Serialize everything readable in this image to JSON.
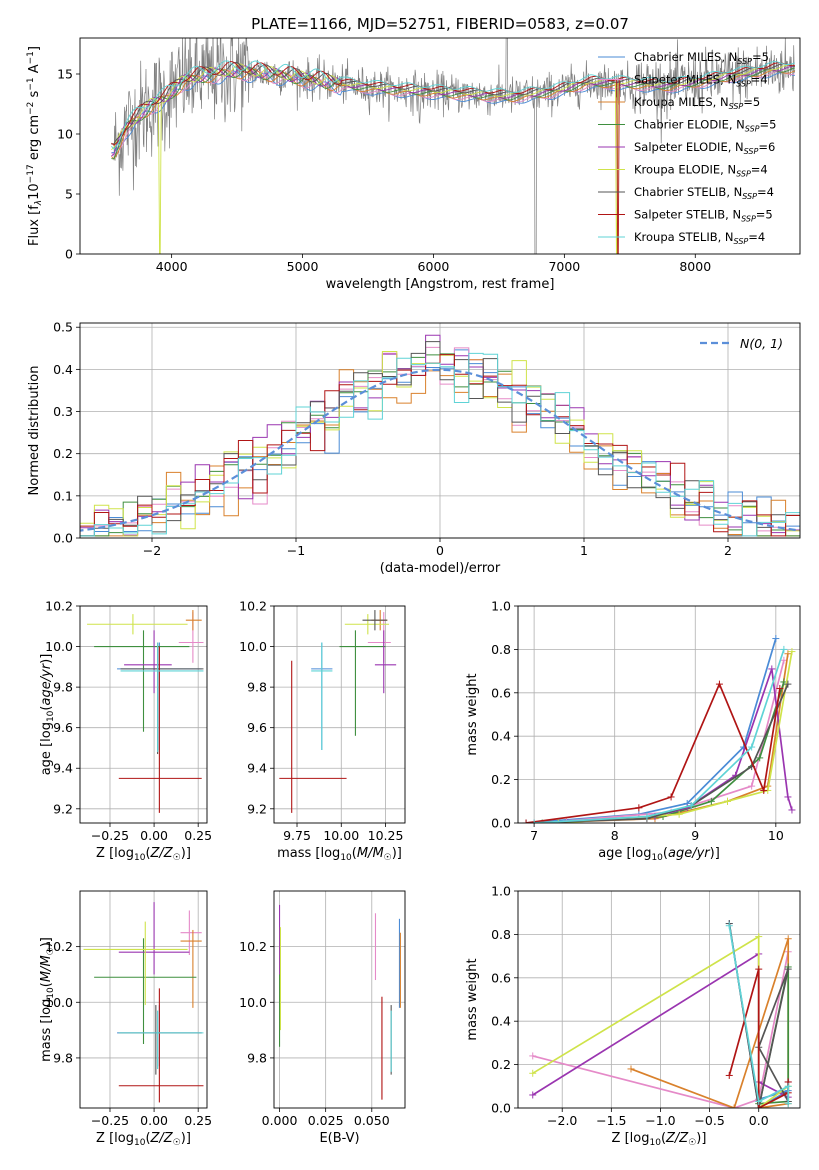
{
  "figure": {
    "title": "PLATE=1166, MJD=52751, FIBERID=0583, z=0.07"
  },
  "colors": {
    "Chabrier MILES": "#4a8bd6",
    "Salpeter MILES": "#e58ac8",
    "Kroupa MILES": "#d9812c",
    "Chabrier ELODIE": "#3f8f3f",
    "Salpeter ELODIE": "#9a35b0",
    "Kroupa ELODIE": "#cfe34a",
    "Chabrier STELIB": "#555555",
    "Salpeter STELIB": "#b01515",
    "Kroupa STELIB": "#5fd3d6",
    "data": "#7f7f7f",
    "normal": "#5b8fd9"
  },
  "chart_data": [
    {
      "id": "spectrum",
      "type": "line",
      "title": "PLATE=1166, MJD=52751, FIBERID=0583, z=0.07",
      "xlabel": "wavelength [Angstrom, rest frame]",
      "ylabel": "Flux [f_λ 10^-17 erg cm^-2 s^-1 A^-1]",
      "xlim": [
        3300,
        8800
      ],
      "ylim": [
        0,
        18
      ],
      "xticks": [
        4000,
        5000,
        6000,
        7000,
        8000
      ],
      "yticks": [
        0,
        5,
        10,
        15
      ],
      "legend_position": "top-right",
      "legend": [
        {
          "name": "Chabrier MILES",
          "nssp": 5
        },
        {
          "name": "Salpeter MILES",
          "nssp": 4
        },
        {
          "name": "Kroupa MILES",
          "nssp": 5
        },
        {
          "name": "Chabrier ELODIE",
          "nssp": 5
        },
        {
          "name": "Salpeter ELODIE",
          "nssp": 6
        },
        {
          "name": "Kroupa ELODIE",
          "nssp": 4
        },
        {
          "name": "Chabrier STELIB",
          "nssp": 4
        },
        {
          "name": "Salpeter STELIB",
          "nssp": 5
        },
        {
          "name": "Kroupa STELIB",
          "nssp": 4
        }
      ],
      "continuum": {
        "x": [
          3560,
          3650,
          3750,
          3850,
          3950,
          4100,
          4300,
          4500,
          4800,
          5100,
          5400,
          5700,
          6000,
          6300,
          6600,
          6900,
          7200,
          7500,
          7800,
          8000,
          8300,
          8600,
          8760
        ],
        "y": [
          8.5,
          10.5,
          11.5,
          12.5,
          13.0,
          14.5,
          15.0,
          15.3,
          15.0,
          14.5,
          14.0,
          13.7,
          13.5,
          13.3,
          13.1,
          13.5,
          14.3,
          14.2,
          14.0,
          14.3,
          14.9,
          15.4,
          15.5
        ]
      },
      "grid": false
    },
    {
      "id": "residual-hist",
      "type": "line",
      "xlabel": "(data-model)/error",
      "ylabel": "Normed distribution",
      "xlim": [
        -2.5,
        2.5
      ],
      "ylim": [
        0,
        0.51
      ],
      "xticks": [
        -2,
        -1,
        0,
        1,
        2
      ],
      "yticks": [
        0.0,
        0.1,
        0.2,
        0.3,
        0.4,
        0.5
      ],
      "legend_position": "top-right",
      "legend": [
        {
          "name": "N(0, 1)",
          "style": "dashed"
        }
      ],
      "bin_width": 0.1,
      "grid": true
    },
    {
      "id": "z-age",
      "type": "scatter",
      "xlabel": "Z [log10(Z/Z☉)]",
      "ylabel": "age [log10(age/yr)]",
      "xlim": [
        -0.42,
        0.3
      ],
      "ylim": [
        9.13,
        10.2
      ],
      "xticks": [
        -0.25,
        0.0,
        0.25
      ],
      "yticks": [
        9.2,
        9.4,
        9.6,
        9.8,
        10.0,
        10.2
      ],
      "series": [
        {
          "name": "Chabrier MILES",
          "x": 0.03,
          "xerr": [
            0.24,
            0.24
          ],
          "y": 9.89,
          "yerr": [
            0.4,
            0.13
          ]
        },
        {
          "name": "Salpeter MILES",
          "x": 0.22,
          "xerr": [
            0.08,
            0.06
          ],
          "y": 10.02,
          "yerr": [
            0.1,
            0.15
          ]
        },
        {
          "name": "Kroupa MILES",
          "x": 0.22,
          "xerr": [
            0.04,
            0.05
          ],
          "y": 10.13,
          "yerr": [
            0.05,
            0.05
          ]
        },
        {
          "name": "Chabrier ELODIE",
          "x": -0.06,
          "xerr": [
            0.28,
            0.26
          ],
          "y": 10.0,
          "yerr": [
            0.42,
            0.08
          ]
        },
        {
          "name": "Salpeter ELODIE",
          "x": 0.0,
          "xerr": [
            0.17,
            0.1
          ],
          "y": 9.91,
          "yerr": [
            0.14,
            0.17
          ]
        },
        {
          "name": "Kroupa ELODIE",
          "x": -0.12,
          "xerr": [
            0.26,
            0.31
          ],
          "y": 10.11,
          "yerr": [
            0.05,
            0.05
          ]
        },
        {
          "name": "Chabrier STELIB",
          "x": 0.02,
          "xerr": [
            0.21,
            0.26
          ],
          "y": 9.89,
          "yerr": [
            0.42,
            0.13
          ]
        },
        {
          "name": "Salpeter STELIB",
          "x": 0.03,
          "xerr": [
            0.23,
            0.24
          ],
          "y": 9.35,
          "yerr": [
            0.17,
            0.65
          ]
        },
        {
          "name": "Kroupa STELIB",
          "x": 0.02,
          "xerr": [
            0.21,
            0.26
          ],
          "y": 9.88,
          "yerr": [
            0.4,
            0.14
          ]
        }
      ],
      "grid": true
    },
    {
      "id": "mass-age",
      "type": "scatter",
      "xlabel": "mass [log10(M/M☉)]",
      "ylabel": "",
      "xlim": [
        9.62,
        10.36
      ],
      "ylim": [
        9.13,
        10.2
      ],
      "xticks": [
        9.75,
        10.0,
        10.25
      ],
      "yticks": [
        9.2,
        9.4,
        9.6,
        9.8,
        10.0,
        10.2
      ],
      "series": [
        {
          "name": "Chabrier MILES",
          "x": 9.89,
          "xerr": [
            0.06,
            0.06
          ],
          "y": 9.89,
          "yerr": [
            0.4,
            0.13
          ]
        },
        {
          "name": "Salpeter MILES",
          "x": 10.24,
          "xerr": [
            0.09,
            0.04
          ],
          "y": 10.02,
          "yerr": [
            0.1,
            0.15
          ]
        },
        {
          "name": "Kroupa MILES",
          "x": 10.22,
          "xerr": [
            0.05,
            0.04
          ],
          "y": 10.13,
          "yerr": [
            0.05,
            0.05
          ]
        },
        {
          "name": "Chabrier ELODIE",
          "x": 10.08,
          "xerr": [
            0.09,
            0.17
          ],
          "y": 10.0,
          "yerr": [
            0.44,
            0.08
          ]
        },
        {
          "name": "Salpeter ELODIE",
          "x": 10.24,
          "xerr": [
            0.05,
            0.07
          ],
          "y": 9.91,
          "yerr": [
            0.14,
            0.17
          ]
        },
        {
          "name": "Kroupa ELODIE",
          "x": 10.15,
          "xerr": [
            0.13,
            0.12
          ],
          "y": 10.11,
          "yerr": [
            0.05,
            0.05
          ]
        },
        {
          "name": "Chabrier STELIB",
          "x": 10.19,
          "xerr": [
            0.07,
            0.07
          ],
          "y": 10.13,
          "yerr": [
            0.05,
            0.05
          ]
        },
        {
          "name": "Salpeter STELIB",
          "x": 9.72,
          "xerr": [
            0.07,
            0.31
          ],
          "y": 9.35,
          "yerr": [
            0.17,
            0.58
          ]
        },
        {
          "name": "Kroupa STELIB",
          "x": 9.89,
          "xerr": [
            0.06,
            0.06
          ],
          "y": 9.88,
          "yerr": [
            0.39,
            0.14
          ]
        }
      ],
      "grid": true
    },
    {
      "id": "age-weight",
      "type": "line",
      "xlabel": "age [log10(age/yr)]",
      "ylabel": "mass weight",
      "xlim": [
        6.8,
        10.3
      ],
      "ylim": [
        0,
        1.0
      ],
      "xticks": [
        7,
        8,
        9,
        10
      ],
      "yticks": [
        0.0,
        0.2,
        0.4,
        0.6,
        0.8,
        1.0
      ],
      "series": [
        {
          "name": "Chabrier MILES",
          "x": [
            6.9,
            8.3,
            8.9,
            9.6,
            10.0
          ],
          "y": [
            0.0,
            0.04,
            0.09,
            0.35,
            0.85
          ]
        },
        {
          "name": "Salpeter MILES",
          "x": [
            7.4,
            8.7,
            9.7,
            10.1
          ],
          "y": [
            0.01,
            0.05,
            0.17,
            0.75
          ]
        },
        {
          "name": "Kroupa MILES",
          "x": [
            7.0,
            8.5,
            9.4,
            9.9,
            10.15
          ],
          "y": [
            0.0,
            0.02,
            0.1,
            0.17,
            0.78
          ]
        },
        {
          "name": "Chabrier ELODIE",
          "x": [
            7.1,
            8.6,
            9.2,
            9.8,
            10.1
          ],
          "y": [
            0.0,
            0.03,
            0.1,
            0.3,
            0.65
          ]
        },
        {
          "name": "Salpeter ELODIE",
          "x": [
            7.0,
            8.5,
            8.9,
            9.5,
            9.95,
            10.15,
            10.2
          ],
          "y": [
            0.0,
            0.03,
            0.07,
            0.22,
            0.71,
            0.12,
            0.06
          ]
        },
        {
          "name": "Kroupa ELODIE",
          "x": [
            7.3,
            8.8,
            9.4,
            9.9,
            10.2
          ],
          "y": [
            0.0,
            0.04,
            0.1,
            0.15,
            0.79
          ]
        },
        {
          "name": "Chabrier STELIB",
          "x": [
            6.9,
            8.4,
            8.95,
            9.7,
            10.15
          ],
          "y": [
            0.0,
            0.02,
            0.08,
            0.26,
            0.64
          ]
        },
        {
          "name": "Salpeter STELIB",
          "x": [
            6.9,
            8.3,
            8.7,
            9.3,
            9.85,
            10.05
          ],
          "y": [
            0.0,
            0.07,
            0.12,
            0.64,
            0.15,
            0.62
          ]
        },
        {
          "name": "Kroupa STELIB",
          "x": [
            7.0,
            8.4,
            8.95,
            9.7,
            10.1
          ],
          "y": [
            0.0,
            0.03,
            0.08,
            0.35,
            0.8
          ]
        }
      ],
      "grid": true
    },
    {
      "id": "z-mass",
      "type": "scatter",
      "xlabel": "Z [log10(Z/Z☉)]",
      "ylabel": "mass [log10(M/M☉)]",
      "xlim": [
        -0.42,
        0.3
      ],
      "ylim": [
        9.62,
        10.4
      ],
      "xticks": [
        -0.25,
        0.0,
        0.25
      ],
      "yticks": [
        9.8,
        10.0,
        10.2
      ],
      "series": [
        {
          "name": "Chabrier MILES",
          "x": 0.03,
          "xerr": [
            0.24,
            0.24
          ],
          "y": 9.89,
          "yerr": [
            0.12,
            0.1
          ]
        },
        {
          "name": "Salpeter MILES",
          "x": 0.2,
          "xerr": [
            0.05,
            0.07
          ],
          "y": 10.25,
          "yerr": [
            0.08,
            0.08
          ]
        },
        {
          "name": "Kroupa MILES",
          "x": 0.22,
          "xerr": [
            0.07,
            0.05
          ],
          "y": 10.22,
          "yerr": [
            0.24,
            0.04
          ]
        },
        {
          "name": "Chabrier ELODIE",
          "x": -0.06,
          "xerr": [
            0.28,
            0.3
          ],
          "y": 10.09,
          "yerr": [
            0.24,
            0.14
          ]
        },
        {
          "name": "Salpeter ELODIE",
          "x": 0.0,
          "xerr": [
            0.2,
            0.2
          ],
          "y": 10.18,
          "yerr": [
            0.08,
            0.18
          ]
        },
        {
          "name": "Kroupa ELODIE",
          "x": -0.05,
          "xerr": [
            0.35,
            0.24
          ],
          "y": 10.19,
          "yerr": [
            0.2,
            0.1
          ]
        },
        {
          "name": "Chabrier STELIB",
          "x": 0.01,
          "xerr": [
            0.21,
            0.26
          ],
          "y": 9.89,
          "yerr": [
            0.15,
            0.1
          ]
        },
        {
          "name": "Salpeter STELIB",
          "x": 0.03,
          "xerr": [
            0.23,
            0.25
          ],
          "y": 9.7,
          "yerr": [
            0.06,
            0.35
          ]
        },
        {
          "name": "Kroupa STELIB",
          "x": 0.02,
          "xerr": [
            0.22,
            0.26
          ],
          "y": 9.89,
          "yerr": [
            0.13,
            0.08
          ]
        }
      ],
      "grid": true
    },
    {
      "id": "ebv-mass",
      "type": "scatter",
      "xlabel": "E(B-V)",
      "ylabel": "",
      "xlim": [
        -0.003,
        0.068
      ],
      "ylim": [
        9.62,
        10.4
      ],
      "xticks": [
        0.0,
        0.025,
        0.05
      ],
      "xticklabels": [
        "0.000",
        "0.025",
        "0.050"
      ],
      "yticks": [
        9.8,
        10.0,
        10.2
      ],
      "series": [
        {
          "name": "Chabrier MILES",
          "x": 0.065,
          "y": 10.23,
          "yerr": [
            0.25,
            0.07
          ]
        },
        {
          "name": "Salpeter MILES",
          "x": 0.052,
          "y": 10.23,
          "yerr": [
            0.15,
            0.09
          ]
        },
        {
          "name": "Kroupa MILES",
          "x": 0.0655,
          "y": 10.13,
          "yerr": [
            0.15,
            0.12
          ]
        },
        {
          "name": "Chabrier ELODIE",
          "x": 0.0,
          "y": 10.05,
          "yerr": [
            0.21,
            0.12
          ]
        },
        {
          "name": "Salpeter ELODIE",
          "x": 0.0,
          "y": 10.25,
          "yerr": [
            0.15,
            0.1
          ]
        },
        {
          "name": "Kroupa ELODIE",
          "x": 0.0005,
          "y": 10.1,
          "yerr": [
            0.2,
            0.17
          ]
        },
        {
          "name": "Chabrier STELIB",
          "x": 0.0605,
          "y": 9.89,
          "yerr": [
            0.15,
            0.1
          ]
        },
        {
          "name": "Salpeter STELIB",
          "x": 0.0555,
          "y": 9.9,
          "yerr": [
            0.25,
            0.12
          ]
        },
        {
          "name": "Kroupa STELIB",
          "x": 0.0605,
          "y": 9.89,
          "yerr": [
            0.14,
            0.08
          ]
        }
      ],
      "grid": true
    },
    {
      "id": "z-weight",
      "type": "line",
      "xlabel": "Z [log10(Z/Z☉)]",
      "ylabel": "mass weight",
      "xlim": [
        -2.45,
        0.42
      ],
      "ylim": [
        0,
        1.0
      ],
      "xticks": [
        -2.0,
        -1.5,
        -1.0,
        -0.5,
        0.0
      ],
      "yticks": [
        0.0,
        0.2,
        0.4,
        0.6,
        0.8,
        1.0
      ],
      "series": [
        {
          "name": "Chabrier MILES",
          "x": [
            -0.3,
            0.0,
            0.3,
            0.0
          ],
          "y": [
            0.85,
            0.0,
            0.08,
            0.04
          ]
        },
        {
          "name": "Salpeter MILES",
          "x": [
            -2.3,
            -0.25,
            0.0,
            0.3
          ],
          "y": [
            0.24,
            0.0,
            0.04,
            0.72
          ]
        },
        {
          "name": "Kroupa MILES",
          "x": [
            -1.3,
            -0.25,
            0.3,
            0.3,
            0.0
          ],
          "y": [
            0.18,
            0.0,
            0.78,
            0.02,
            0.0
          ]
        },
        {
          "name": "Chabrier ELODIE",
          "x": [
            0.0,
            0.3,
            0.3,
            0.0
          ],
          "y": [
            0.0,
            0.65,
            0.03,
            0.02
          ]
        },
        {
          "name": "Salpeter ELODIE",
          "x": [
            -2.3,
            0.0,
            0.0,
            0.3,
            0.3
          ],
          "y": [
            0.06,
            0.71,
            0.12,
            0.05,
            0.12
          ]
        },
        {
          "name": "Kroupa ELODIE",
          "x": [
            -2.3,
            0.0,
            0.0,
            0.3
          ],
          "y": [
            0.16,
            0.79,
            0.0,
            0.1
          ]
        },
        {
          "name": "Chabrier STELIB",
          "x": [
            -0.3,
            0.0,
            0.3,
            0.0,
            0.3
          ],
          "y": [
            0.85,
            0.0,
            0.64,
            0.28,
            0.03
          ]
        },
        {
          "name": "Salpeter STELIB",
          "x": [
            -0.3,
            0.0,
            0.0,
            0.3,
            0.3
          ],
          "y": [
            0.15,
            0.64,
            0.0,
            0.07,
            0.12
          ]
        },
        {
          "name": "Kroupa STELIB",
          "x": [
            -0.3,
            0.0,
            0.3,
            0.3
          ],
          "y": [
            0.84,
            0.03,
            0.1,
            0.02
          ]
        }
      ],
      "grid": true
    }
  ]
}
